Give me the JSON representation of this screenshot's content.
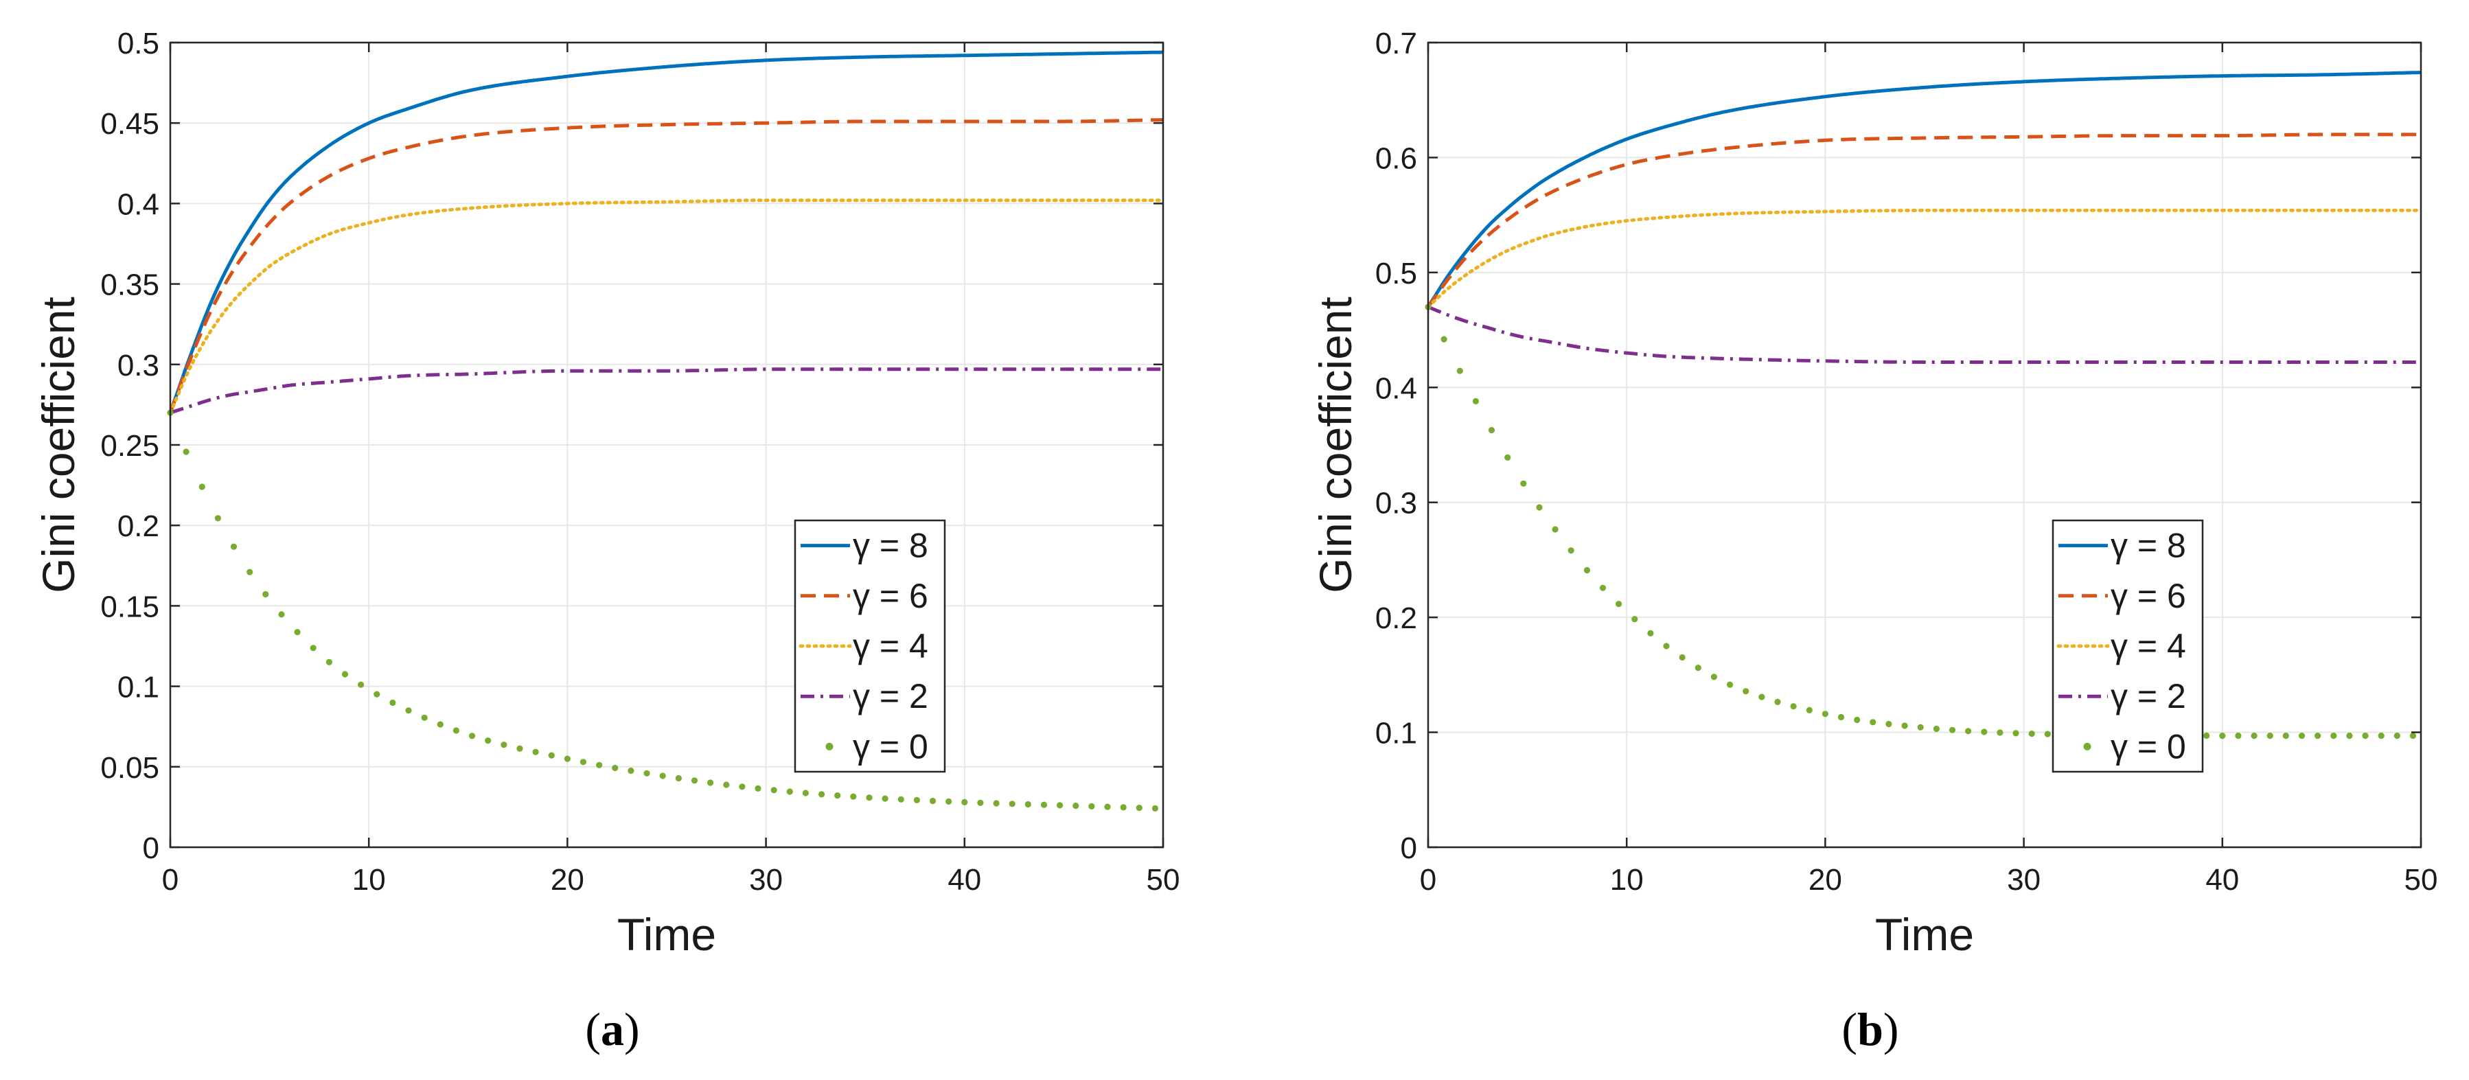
{
  "chart_data": [
    {
      "type": "line",
      "panel_label": "a",
      "xlabel": "Time",
      "ylabel": "Gini coefficient",
      "xlim": [
        0,
        50
      ],
      "ylim": [
        0,
        0.5
      ],
      "xticks": [
        0,
        10,
        20,
        30,
        40,
        50
      ],
      "yticks": [
        0,
        0.05,
        0.1,
        0.15,
        0.2,
        0.25,
        0.3,
        0.35,
        0.4,
        0.45,
        0.5
      ],
      "grid": true,
      "legend_position": "lower-right",
      "x": [
        0,
        1,
        2,
        3,
        4,
        5,
        6,
        8,
        10,
        12,
        15,
        20,
        25,
        30,
        35,
        40,
        45,
        50
      ],
      "series": [
        {
          "name": "γ = 8",
          "gamma": "8",
          "color": "#0072bd",
          "style": "solid",
          "values": [
            0.27,
            0.305,
            0.337,
            0.363,
            0.384,
            0.402,
            0.416,
            0.436,
            0.45,
            0.459,
            0.47,
            0.479,
            0.485,
            0.489,
            0.491,
            0.492,
            0.493,
            0.494
          ]
        },
        {
          "name": "γ = 6",
          "gamma": "6",
          "color": "#d95319",
          "style": "dashed",
          "values": [
            0.27,
            0.303,
            0.332,
            0.355,
            0.373,
            0.388,
            0.4,
            0.417,
            0.428,
            0.435,
            0.442,
            0.447,
            0.449,
            0.45,
            0.451,
            0.451,
            0.451,
            0.452
          ]
        },
        {
          "name": "γ = 4",
          "gamma": "4",
          "color": "#edb120",
          "style": "dotted",
          "values": [
            0.27,
            0.298,
            0.32,
            0.337,
            0.35,
            0.361,
            0.369,
            0.381,
            0.388,
            0.393,
            0.397,
            0.4,
            0.401,
            0.402,
            0.402,
            0.402,
            0.402,
            0.402
          ]
        },
        {
          "name": "γ = 2",
          "gamma": "2",
          "color": "#7e2f8e",
          "style": "dashdot",
          "values": [
            0.27,
            0.274,
            0.278,
            0.281,
            0.283,
            0.285,
            0.287,
            0.289,
            0.291,
            0.293,
            0.294,
            0.296,
            0.296,
            0.297,
            0.297,
            0.297,
            0.297,
            0.297
          ]
        },
        {
          "name": "γ = 0",
          "gamma": "0",
          "color": "#77ac30",
          "style": "dots",
          "values": [
            0.27,
            0.24,
            0.214,
            0.191,
            0.171,
            0.154,
            0.139,
            0.115,
            0.098,
            0.085,
            0.07,
            0.055,
            0.044,
            0.036,
            0.031,
            0.028,
            0.026,
            0.024
          ]
        }
      ]
    },
    {
      "type": "line",
      "panel_label": "b",
      "xlabel": "Time",
      "ylabel": "Gini coefficient",
      "xlim": [
        0,
        50
      ],
      "ylim": [
        0,
        0.7
      ],
      "xticks": [
        0,
        10,
        20,
        30,
        40,
        50
      ],
      "yticks": [
        0,
        0.1,
        0.2,
        0.3,
        0.4,
        0.5,
        0.6,
        0.7
      ],
      "grid": true,
      "legend_position": "lower-right",
      "x": [
        0,
        1,
        2,
        3,
        4,
        5,
        6,
        8,
        10,
        12,
        15,
        20,
        25,
        30,
        35,
        40,
        45,
        50
      ],
      "series": [
        {
          "name": "γ = 8",
          "gamma": "8",
          "color": "#0072bd",
          "style": "solid",
          "values": [
            0.47,
            0.497,
            0.52,
            0.54,
            0.556,
            0.57,
            0.582,
            0.601,
            0.616,
            0.627,
            0.64,
            0.653,
            0.661,
            0.666,
            0.669,
            0.671,
            0.672,
            0.674
          ]
        },
        {
          "name": "γ = 6",
          "gamma": "6",
          "color": "#d95319",
          "style": "dashed",
          "values": [
            0.47,
            0.494,
            0.515,
            0.532,
            0.546,
            0.558,
            0.568,
            0.583,
            0.594,
            0.601,
            0.608,
            0.615,
            0.617,
            0.618,
            0.619,
            0.619,
            0.62,
            0.62
          ]
        },
        {
          "name": "γ = 4",
          "gamma": "4",
          "color": "#edb120",
          "style": "dotted",
          "values": [
            0.47,
            0.486,
            0.499,
            0.51,
            0.519,
            0.526,
            0.532,
            0.54,
            0.545,
            0.548,
            0.551,
            0.553,
            0.554,
            0.554,
            0.554,
            0.554,
            0.554,
            0.554
          ]
        },
        {
          "name": "γ = 2",
          "gamma": "2",
          "color": "#7e2f8e",
          "style": "dashdot",
          "values": [
            0.47,
            0.463,
            0.457,
            0.452,
            0.447,
            0.443,
            0.44,
            0.434,
            0.43,
            0.427,
            0.425,
            0.423,
            0.422,
            0.422,
            0.422,
            0.422,
            0.422,
            0.422
          ]
        },
        {
          "name": "γ = 0",
          "gamma": "0",
          "color": "#77ac30",
          "style": "dots",
          "values": [
            0.47,
            0.435,
            0.401,
            0.369,
            0.339,
            0.311,
            0.286,
            0.241,
            0.205,
            0.175,
            0.143,
            0.116,
            0.104,
            0.099,
            0.098,
            0.097,
            0.097,
            0.097
          ]
        }
      ]
    }
  ]
}
